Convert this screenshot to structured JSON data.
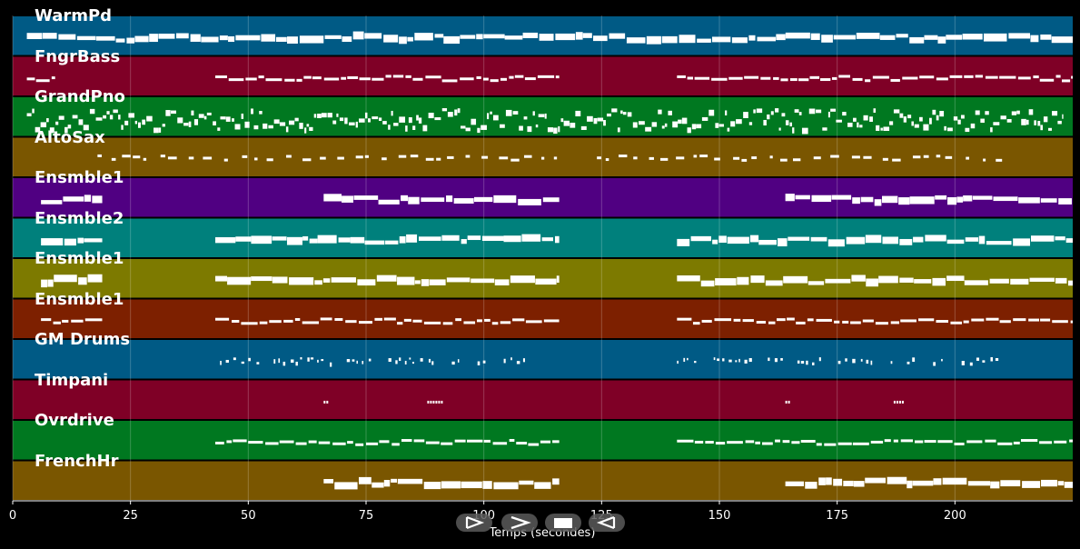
{
  "chart_data": {
    "type": "piano-roll",
    "xlabel": "Temps (secondes)",
    "xlim": [
      0,
      225
    ],
    "x_ticks": [
      0,
      25,
      50,
      75,
      100,
      125,
      150,
      175,
      200
    ],
    "grid": true,
    "tracks": [
      {
        "name": "WarmPd",
        "color": "#005a85",
        "density": "sustained",
        "segments": [
          [
            3,
            225
          ]
        ]
      },
      {
        "name": "FngrBass",
        "color": "#7f0026",
        "density": "line",
        "segments": [
          [
            3,
            9
          ],
          [
            43,
            116
          ],
          [
            141,
            225
          ]
        ]
      },
      {
        "name": "GrandPno",
        "color": "#007820",
        "density": "dense",
        "segments": [
          [
            3,
            223
          ]
        ]
      },
      {
        "name": "AltoSax",
        "color": "#7a5600",
        "density": "sparse",
        "segments": [
          [
            18,
            116
          ],
          [
            124,
            210
          ]
        ]
      },
      {
        "name": "Ensmble1",
        "color": "#500082",
        "density": "sustained",
        "segments": [
          [
            6,
            19
          ],
          [
            66,
            116
          ],
          [
            164,
            225
          ]
        ]
      },
      {
        "name": "Ensmble2",
        "color": "#00807c",
        "density": "sustained",
        "segments": [
          [
            6,
            19
          ],
          [
            43,
            116
          ],
          [
            141,
            225
          ]
        ]
      },
      {
        "name": "Ensmble1",
        "color": "#7d7a00",
        "density": "sustained",
        "segments": [
          [
            6,
            19
          ],
          [
            43,
            116
          ],
          [
            141,
            225
          ]
        ]
      },
      {
        "name": "Ensmble1",
        "color": "#7d2000",
        "density": "line",
        "segments": [
          [
            6,
            19
          ],
          [
            43,
            116
          ],
          [
            141,
            225
          ]
        ]
      },
      {
        "name": "GM Drums",
        "color": "#005a85",
        "density": "drums",
        "segments": [
          [
            44,
            109
          ],
          [
            141,
            210
          ],
          [
            225,
            225
          ]
        ]
      },
      {
        "name": "Timpani",
        "color": "#7f0026",
        "density": "hits",
        "segments": [
          [
            66,
            66
          ],
          [
            88,
            91
          ],
          [
            164,
            165
          ],
          [
            187,
            189
          ]
        ]
      },
      {
        "name": "Ovrdrive",
        "color": "#007820",
        "density": "line",
        "segments": [
          [
            43,
            116
          ],
          [
            141,
            225
          ]
        ]
      },
      {
        "name": "FrenchHr",
        "color": "#7a5600",
        "density": "sustained",
        "segments": [
          [
            66,
            116
          ],
          [
            164,
            225
          ]
        ]
      }
    ]
  },
  "controls": {
    "buttons": [
      {
        "name": "play-icon"
      },
      {
        "name": "forward-icon"
      },
      {
        "name": "stop-icon"
      },
      {
        "name": "rewind-icon"
      }
    ]
  }
}
